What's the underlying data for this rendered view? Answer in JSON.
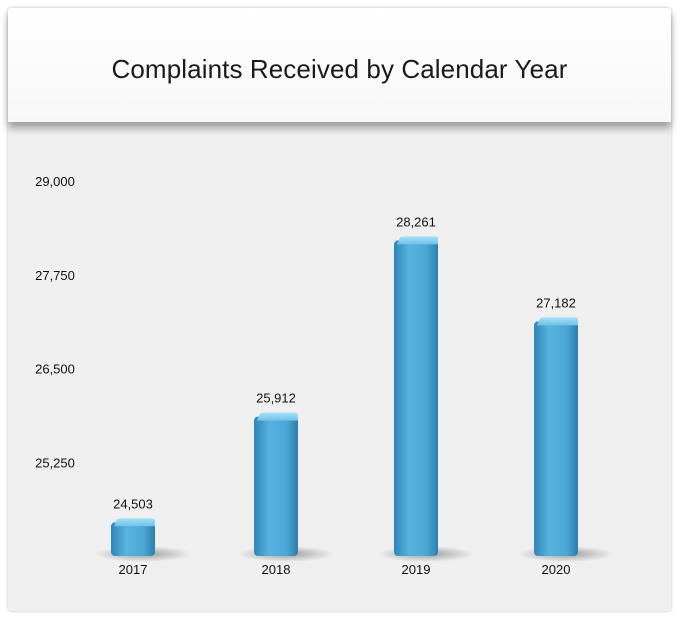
{
  "chart_data": {
    "type": "bar",
    "title": "Complaints Received by Calendar Year",
    "categories": [
      "2017",
      "2018",
      "2019",
      "2020"
    ],
    "values": [
      24503,
      25912,
      28261,
      27182
    ],
    "value_labels": [
      "24,503",
      "25,912",
      "28,261",
      "27,182"
    ],
    "yticks": [
      25250,
      26500,
      27750,
      29000
    ],
    "ytick_labels": [
      "25,250",
      "26,500",
      "27,750",
      "29,000"
    ],
    "ylim": [
      24000,
      29000
    ],
    "xlabel": "",
    "ylabel": "",
    "grid": false,
    "legend": "none",
    "bar_color": "#4aa6d3"
  }
}
